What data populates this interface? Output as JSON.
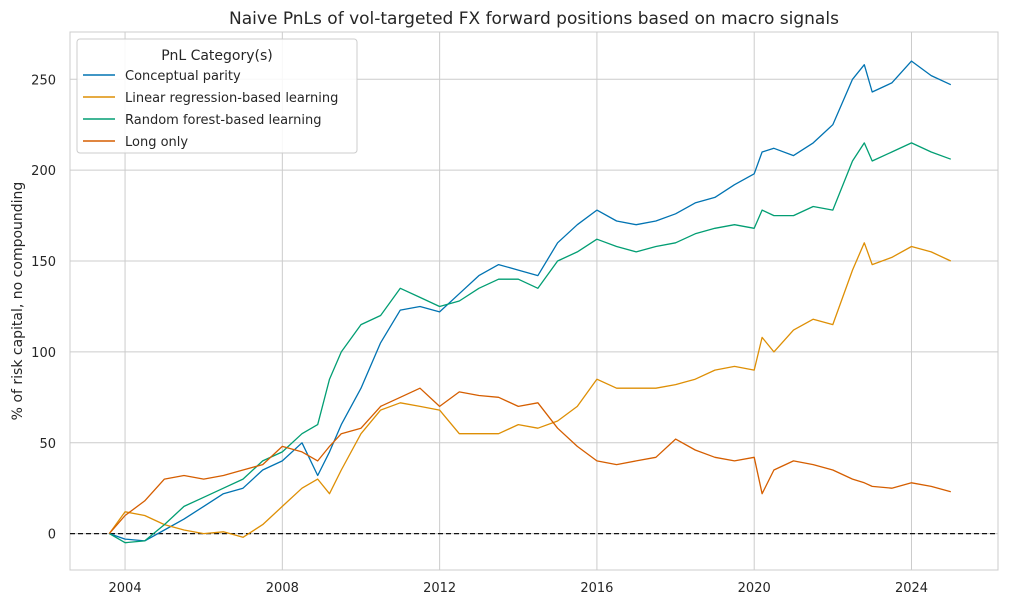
{
  "chart_data": {
    "type": "line",
    "title": "Naive PnLs of vol-targeted FX forward positions based on macro signals",
    "xlabel": "",
    "ylabel": "% of risk capital, no compounding",
    "xlim": [
      2002.6,
      2026.2
    ],
    "ylim": [
      -20,
      276
    ],
    "x_ticks": [
      2004,
      2008,
      2012,
      2016,
      2020,
      2024
    ],
    "x_tick_labels": [
      "2004",
      "2008",
      "2012",
      "2016",
      "2020",
      "2024"
    ],
    "y_ticks": [
      0,
      50,
      100,
      150,
      200,
      250
    ],
    "y_tick_labels": [
      "0",
      "50",
      "100",
      "150",
      "200",
      "250"
    ],
    "grid": true,
    "zero_line": {
      "y": 0,
      "style": "dashed",
      "color": "#111111"
    },
    "legend": {
      "title": "PnL Category(s)",
      "location": "top-left"
    },
    "x": [
      2003.6,
      2004.0,
      2004.5,
      2005.0,
      2005.5,
      2006.0,
      2006.5,
      2007.0,
      2007.5,
      2008.0,
      2008.5,
      2008.9,
      2009.2,
      2009.5,
      2010.0,
      2010.5,
      2011.0,
      2011.5,
      2012.0,
      2012.5,
      2013.0,
      2013.5,
      2014.0,
      2014.5,
      2015.0,
      2015.5,
      2016.0,
      2016.5,
      2017.0,
      2017.5,
      2018.0,
      2018.5,
      2019.0,
      2019.5,
      2020.0,
      2020.2,
      2020.5,
      2021.0,
      2021.5,
      2022.0,
      2022.5,
      2022.8,
      2023.0,
      2023.5,
      2024.0,
      2024.5,
      2025.0
    ],
    "series": [
      {
        "name": "Conceptual parity",
        "color": "#0173b2",
        "values": [
          0,
          -3,
          -4,
          2,
          8,
          15,
          22,
          25,
          35,
          40,
          50,
          32,
          45,
          60,
          80,
          105,
          123,
          125,
          122,
          132,
          142,
          148,
          145,
          142,
          160,
          170,
          178,
          172,
          170,
          172,
          176,
          182,
          185,
          192,
          198,
          210,
          212,
          208,
          215,
          225,
          250,
          258,
          243,
          248,
          260,
          252,
          247
        ]
      },
      {
        "name": "Linear regression-based learning",
        "color": "#de8f05",
        "values": [
          0,
          12,
          10,
          5,
          2,
          0,
          1,
          -2,
          5,
          15,
          25,
          30,
          22,
          35,
          55,
          68,
          72,
          70,
          68,
          55,
          55,
          55,
          60,
          58,
          62,
          70,
          85,
          80,
          80,
          80,
          82,
          85,
          90,
          92,
          90,
          108,
          100,
          112,
          118,
          115,
          145,
          160,
          148,
          152,
          158,
          155,
          150
        ]
      },
      {
        "name": "Random forest-based learning",
        "color": "#029e73",
        "values": [
          0,
          -5,
          -4,
          5,
          15,
          20,
          25,
          30,
          40,
          45,
          55,
          60,
          85,
          100,
          115,
          120,
          135,
          130,
          125,
          128,
          135,
          140,
          140,
          135,
          150,
          155,
          162,
          158,
          155,
          158,
          160,
          165,
          168,
          170,
          168,
          178,
          175,
          175,
          180,
          178,
          205,
          215,
          205,
          210,
          215,
          210,
          206
        ]
      },
      {
        "name": "Long only",
        "color": "#d55e00",
        "values": [
          0,
          10,
          18,
          30,
          32,
          30,
          32,
          35,
          38,
          48,
          45,
          40,
          48,
          55,
          58,
          70,
          75,
          80,
          70,
          78,
          76,
          75,
          70,
          72,
          58,
          48,
          40,
          38,
          40,
          42,
          52,
          46,
          42,
          40,
          42,
          22,
          35,
          40,
          38,
          35,
          30,
          28,
          26,
          25,
          28,
          26,
          23
        ]
      }
    ]
  }
}
